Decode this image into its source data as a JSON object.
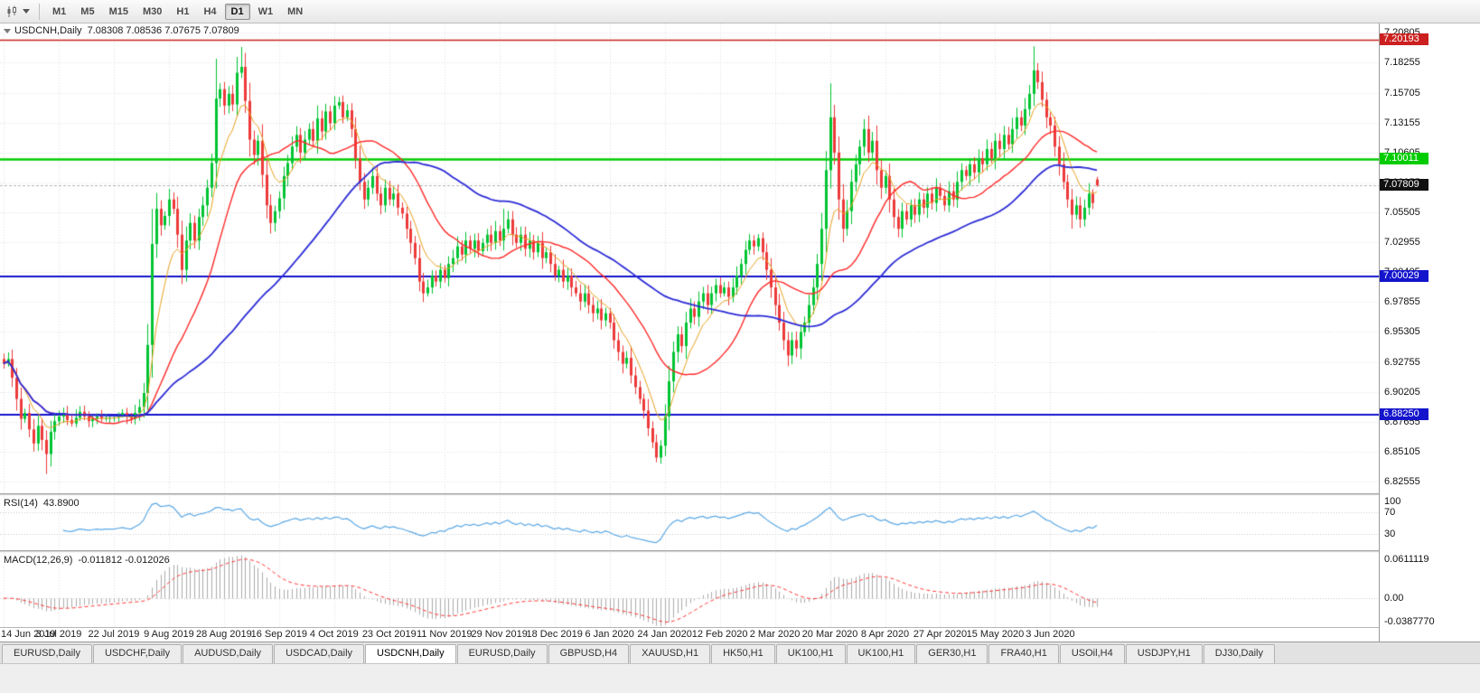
{
  "toolbar": {
    "icons": [
      "candlestick-chart-icon",
      "caret-down-icon"
    ],
    "timeframes": [
      {
        "label": "M1",
        "active": false
      },
      {
        "label": "M5",
        "active": false
      },
      {
        "label": "M15",
        "active": false
      },
      {
        "label": "M30",
        "active": false
      },
      {
        "label": "H1",
        "active": false
      },
      {
        "label": "H4",
        "active": false
      },
      {
        "label": "D1",
        "active": true
      },
      {
        "label": "W1",
        "active": false
      },
      {
        "label": "MN",
        "active": false
      }
    ]
  },
  "chart_data": {
    "type": "candlestick",
    "symbol_title": "USDCNH,Daily",
    "ohlc_text": "7.08308 7.08536 7.07675 7.07809",
    "final_bar": [
      7.08308,
      7.08536,
      7.07675,
      7.07809
    ],
    "up_color": "#00C432",
    "down_color": "#ED3A3A",
    "price_axis_ticks": [
      "7.20805",
      "7.18255",
      "7.15705",
      "7.13155",
      "7.10605",
      "7.08055",
      "7.05505",
      "7.02955",
      "7.00405",
      "6.97855",
      "6.95305",
      "6.92755",
      "6.90205",
      "6.87655",
      "6.85105",
      "6.82555"
    ],
    "price_min": 6.8155,
    "price_max": 7.216,
    "date_labels": [
      "14 Jun 2019",
      "3 Jul 2019",
      "22 Jul 2019",
      "9 Aug 2019",
      "28 Aug 2019",
      "16 Sep 2019",
      "4 Oct 2019",
      "23 Oct 2019",
      "11 Nov 2019",
      "29 Nov 2019",
      "18 Dec 2019",
      "6 Jan 2020",
      "24 Jan 2020",
      "12 Feb 2020",
      "2 Mar 2020",
      "20 Mar 2020",
      "8 Apr 2020",
      "27 Apr 2020",
      "15 May 2020",
      "3 Jun 2020"
    ],
    "bars_per_label": 13,
    "horizontal_lines": [
      {
        "price": 7.20193,
        "label": "7.20193",
        "color": "#CC2020",
        "width": 1.5
      },
      {
        "price": 7.10011,
        "label": "7.10011",
        "color": "#00CC00",
        "width": 2.5
      },
      {
        "price": 7.00029,
        "label": "7.00029",
        "color": "#1414CC",
        "width": 2
      },
      {
        "price": 6.8825,
        "label": "6.88250",
        "color": "#1414CC",
        "width": 2
      }
    ],
    "bid_tag": {
      "price": 7.07809,
      "label": "7.07809",
      "color": "#111111"
    },
    "moving_averages": [
      {
        "period": 8,
        "method": "ema",
        "color": "#E8A321",
        "width": 1
      },
      {
        "period": 21,
        "method": "sma",
        "color": "#FF2A2A",
        "width": 1.4
      },
      {
        "period": 55,
        "method": "sma",
        "color": "#2C2CD6",
        "width": 1.8
      }
    ],
    "closes": [
      6.926,
      6.93,
      6.914,
      6.896,
      6.879,
      6.884,
      6.87,
      6.858,
      6.873,
      6.861,
      6.849,
      6.868,
      6.877,
      6.881,
      6.883,
      6.878,
      6.875,
      6.88,
      6.885,
      6.881,
      6.877,
      6.879,
      6.881,
      6.879,
      6.88,
      6.88,
      6.88,
      6.882,
      6.884,
      6.881,
      6.879,
      6.884,
      6.889,
      6.901,
      6.942,
      7.028,
      7.058,
      7.044,
      7.052,
      7.066,
      7.058,
      7.036,
      7.006,
      7.031,
      7.046,
      7.031,
      7.051,
      7.061,
      7.076,
      7.097,
      7.152,
      7.16,
      7.146,
      7.156,
      7.147,
      7.174,
      7.179,
      7.15,
      7.117,
      7.104,
      7.116,
      7.087,
      7.061,
      7.046,
      7.056,
      7.067,
      7.086,
      7.097,
      7.111,
      7.121,
      7.106,
      7.117,
      7.126,
      7.116,
      7.135,
      7.124,
      7.141,
      7.131,
      7.146,
      7.149,
      7.136,
      7.142,
      7.126,
      7.101,
      7.081,
      7.066,
      7.076,
      7.086,
      7.071,
      7.061,
      7.076,
      7.066,
      7.071,
      7.059,
      7.054,
      7.041,
      7.029,
      7.016,
      6.996,
      6.986,
      6.991,
      7.001,
      6.996,
      7.006,
      6.999,
      7.011,
      7.016,
      7.026,
      7.019,
      7.031,
      7.024,
      7.031,
      7.022,
      7.029,
      7.036,
      7.029,
      7.039,
      7.031,
      7.041,
      7.049,
      7.036,
      7.029,
      7.036,
      7.024,
      7.031,
      7.021,
      7.029,
      7.016,
      7.021,
      7.011,
      7.001,
      7.006,
      6.996,
      7.001,
      6.991,
      6.986,
      6.979,
      6.986,
      6.976,
      6.969,
      6.973,
      6.963,
      6.969,
      6.961,
      6.946,
      6.936,
      6.926,
      6.931,
      6.916,
      6.906,
      6.896,
      6.886,
      6.871,
      6.859,
      6.846,
      6.856,
      6.881,
      6.911,
      6.936,
      6.951,
      6.941,
      6.961,
      6.973,
      6.966,
      6.979,
      6.986,
      6.976,
      6.986,
      6.993,
      6.986,
      6.991,
      6.983,
      6.991,
      7.001,
      7.011,
      7.023,
      7.031,
      7.026,
      7.033,
      7.021,
      7.006,
      6.991,
      6.976,
      6.961,
      6.946,
      6.933,
      6.946,
      6.939,
      6.953,
      6.961,
      6.976,
      6.991,
      7.011,
      7.041,
      7.091,
      7.136,
      7.106,
      7.066,
      7.041,
      7.056,
      7.081,
      7.096,
      7.111,
      7.126,
      7.106,
      7.116,
      7.091,
      7.076,
      7.086,
      7.066,
      7.051,
      7.041,
      7.056,
      7.049,
      7.061,
      7.053,
      7.066,
      7.059,
      7.071,
      7.063,
      7.076,
      7.069,
      7.061,
      7.073,
      7.066,
      7.081,
      7.091,
      7.086,
      7.096,
      7.089,
      7.101,
      7.096,
      7.109,
      7.101,
      7.116,
      7.109,
      7.121,
      7.113,
      7.126,
      7.136,
      7.129,
      7.143,
      7.156,
      7.176,
      7.166,
      7.151,
      7.136,
      7.129,
      7.111,
      7.096,
      7.081,
      7.066,
      7.053,
      7.061,
      7.049,
      7.059,
      7.071,
      7.063,
      7.07809
    ],
    "wick_overrides": {
      "10": {
        "low": 6.832
      },
      "50": {
        "high": 7.186
      },
      "56": {
        "high": 7.196
      },
      "118": {
        "high": 7.058
      },
      "154": {
        "low": 6.842
      },
      "195": {
        "high": 7.165
      },
      "243": {
        "high": 7.1965
      },
      "252": {
        "low": 7.041
      }
    },
    "indicators": {
      "rsi": {
        "label": "RSI(14)",
        "value": "43.8900",
        "period": 14,
        "levels": [
          100,
          70,
          30
        ],
        "color": "#5BA8E5"
      },
      "macd": {
        "label": "MACD(12,26,9)",
        "values": "-0.011812 -0.012026",
        "fast": 12,
        "slow": 26,
        "signal_period": 9,
        "axis_labels": [
          "0.0611119",
          "0.00",
          "-0.0387770"
        ],
        "hist_color": "#ABABAB",
        "signal_color": "#FF3535"
      }
    }
  },
  "tabs": [
    {
      "label": "EURUSD,Daily",
      "active": false
    },
    {
      "label": "USDCHF,Daily",
      "active": false
    },
    {
      "label": "AUDUSD,Daily",
      "active": false
    },
    {
      "label": "USDCAD,Daily",
      "active": false
    },
    {
      "label": "USDCNH,Daily",
      "active": true
    },
    {
      "label": "EURUSD,Daily",
      "active": false
    },
    {
      "label": "GBPUSD,H4",
      "active": false
    },
    {
      "label": "XAUUSD,H1",
      "active": false
    },
    {
      "label": "HK50,H1",
      "active": false
    },
    {
      "label": "UK100,H1",
      "active": false
    },
    {
      "label": "UK100,H1",
      "active": false
    },
    {
      "label": "GER30,H1",
      "active": false
    },
    {
      "label": "FRA40,H1",
      "active": false
    },
    {
      "label": "USOil,H4",
      "active": false
    },
    {
      "label": "USDJPY,H1",
      "active": false
    },
    {
      "label": "DJ30,Daily",
      "active": false
    }
  ]
}
